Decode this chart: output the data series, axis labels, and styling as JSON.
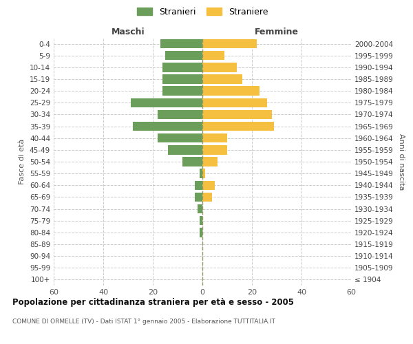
{
  "age_groups": [
    "100+",
    "95-99",
    "90-94",
    "85-89",
    "80-84",
    "75-79",
    "70-74",
    "65-69",
    "60-64",
    "55-59",
    "50-54",
    "45-49",
    "40-44",
    "35-39",
    "30-34",
    "25-29",
    "20-24",
    "15-19",
    "10-14",
    "5-9",
    "0-4"
  ],
  "birth_years": [
    "≤ 1904",
    "1905-1909",
    "1910-1914",
    "1915-1919",
    "1920-1924",
    "1925-1929",
    "1930-1934",
    "1935-1939",
    "1940-1944",
    "1945-1949",
    "1950-1954",
    "1955-1959",
    "1960-1964",
    "1965-1969",
    "1970-1974",
    "1975-1979",
    "1980-1984",
    "1985-1989",
    "1990-1994",
    "1995-1999",
    "2000-2004"
  ],
  "males": [
    0,
    0,
    0,
    0,
    1,
    1,
    2,
    3,
    3,
    1,
    8,
    14,
    18,
    28,
    18,
    29,
    16,
    16,
    16,
    15,
    17
  ],
  "females": [
    0,
    0,
    0,
    0,
    0,
    0,
    0,
    4,
    5,
    1,
    6,
    10,
    10,
    29,
    28,
    26,
    23,
    16,
    14,
    9,
    22
  ],
  "male_color": "#6a9e5a",
  "female_color": "#f5c040",
  "dashed_line_color": "#999966",
  "title": "Popolazione per cittadinanza straniera per età e sesso - 2005",
  "subtitle": "COMUNE DI ORMELLE (TV) - Dati ISTAT 1° gennaio 2005 - Elaborazione TUTTITALIA.IT",
  "ylabel_left": "Fasce di età",
  "ylabel_right": "Anni di nascita",
  "xlabel_left": "Maschi",
  "xlabel_right": "Femmine",
  "legend_male": "Stranieri",
  "legend_female": "Straniere",
  "xlim": 60,
  "background_color": "#ffffff",
  "grid_color": "#cccccc"
}
